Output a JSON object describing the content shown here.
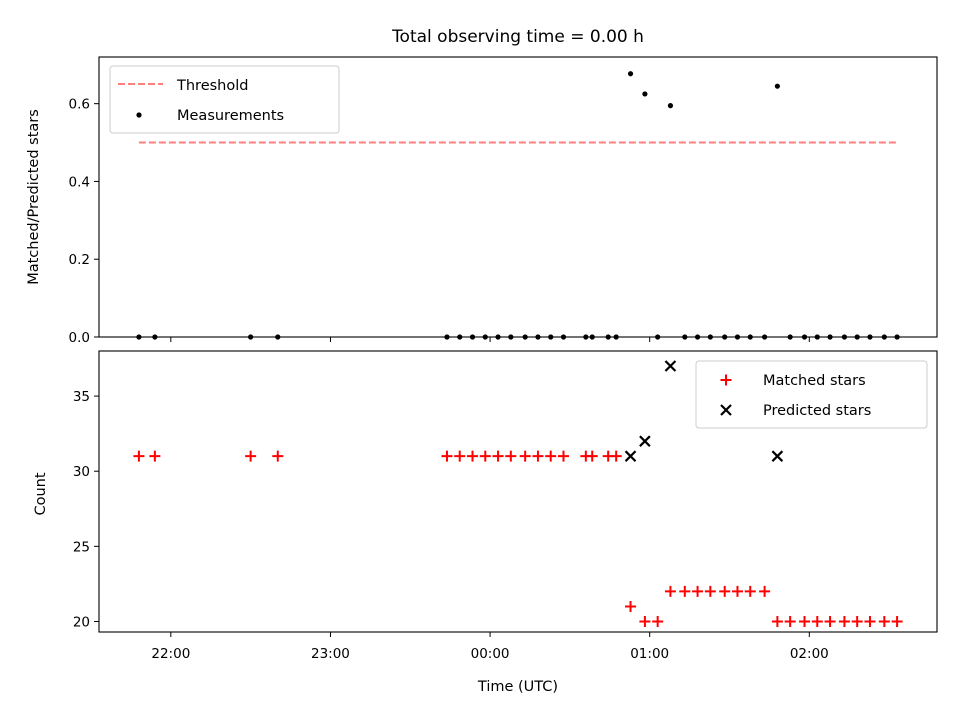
{
  "chart_data": [
    {
      "type": "scatter",
      "title": "Total observing time = 0.00 h",
      "xlabel": "",
      "ylabel": "Matched/Predicted stars",
      "ylim": [
        0.0,
        0.72
      ],
      "yticks": [
        "0.0",
        "0.2",
        "0.4",
        "0.6"
      ],
      "xlim_hours": [
        -2.45,
        2.8
      ],
      "legend": {
        "position": "top-left",
        "entries": [
          "Threshold",
          "Measurements"
        ]
      },
      "threshold": {
        "name": "Threshold",
        "value": 0.5,
        "x_start": -2.2,
        "x_end": 2.55,
        "color": "#ff7f7f",
        "style": "dashed"
      },
      "series": [
        {
          "name": "Measurements",
          "color": "#000000",
          "x_hours": [
            -2.2,
            -2.1,
            -1.5,
            -1.33,
            -0.27,
            -0.19,
            -0.11,
            -0.03,
            0.05,
            0.13,
            0.22,
            0.3,
            0.38,
            0.46,
            0.6,
            0.64,
            0.74,
            0.79,
            0.88,
            0.97,
            1.05,
            1.13,
            1.22,
            1.3,
            1.38,
            1.47,
            1.55,
            1.63,
            1.72,
            1.8,
            1.88,
            1.97,
            2.05,
            2.13,
            2.22,
            2.3,
            2.38,
            2.47,
            2.55
          ],
          "y": [
            0,
            0,
            0,
            0,
            0,
            0,
            0,
            0,
            0,
            0,
            0,
            0,
            0,
            0,
            0,
            0,
            0,
            0,
            0.677,
            0.625,
            0,
            0.595,
            0,
            0,
            0,
            0,
            0,
            0,
            0,
            0.645,
            0,
            0,
            0,
            0,
            0,
            0,
            0,
            0,
            0
          ]
        }
      ]
    },
    {
      "type": "scatter",
      "xlabel": "Time (UTC)",
      "ylabel": "Count",
      "ylim": [
        19.3,
        38.0
      ],
      "yticks": [
        "20",
        "25",
        "30",
        "35"
      ],
      "yticks_values": [
        20,
        25,
        30,
        35
      ],
      "xlim_hours": [
        -2.45,
        2.8
      ],
      "xticks": [
        "22:00",
        "23:00",
        "00:00",
        "01:00",
        "02:00"
      ],
      "xticks_hours": [
        -2,
        -1,
        0,
        1,
        2
      ],
      "legend": {
        "position": "top-right",
        "entries": [
          "Matched stars",
          "Predicted stars"
        ]
      },
      "series": [
        {
          "name": "Matched stars",
          "marker": "plus",
          "color": "#ff0000",
          "x_hours": [
            -2.2,
            -2.1,
            -1.5,
            -1.33,
            -0.27,
            -0.19,
            -0.11,
            -0.03,
            0.05,
            0.13,
            0.22,
            0.3,
            0.38,
            0.46,
            0.6,
            0.64,
            0.74,
            0.79,
            0.88,
            0.97,
            1.05,
            1.13,
            1.22,
            1.3,
            1.38,
            1.47,
            1.55,
            1.63,
            1.72,
            1.8,
            1.88,
            1.97,
            2.05,
            2.13,
            2.22,
            2.3,
            2.38,
            2.47,
            2.55
          ],
          "y": [
            31,
            31,
            31,
            31,
            31,
            31,
            31,
            31,
            31,
            31,
            31,
            31,
            31,
            31,
            31,
            31,
            31,
            31,
            21,
            20,
            20,
            22,
            22,
            22,
            22,
            22,
            22,
            22,
            22,
            20,
            20,
            20,
            20,
            20,
            20,
            20,
            20,
            20,
            20
          ]
        },
        {
          "name": "Predicted stars",
          "marker": "x",
          "color": "#000000",
          "x_hours": [
            0.88,
            0.97,
            1.13,
            1.8
          ],
          "y": [
            31,
            32,
            37,
            31
          ]
        }
      ]
    }
  ]
}
